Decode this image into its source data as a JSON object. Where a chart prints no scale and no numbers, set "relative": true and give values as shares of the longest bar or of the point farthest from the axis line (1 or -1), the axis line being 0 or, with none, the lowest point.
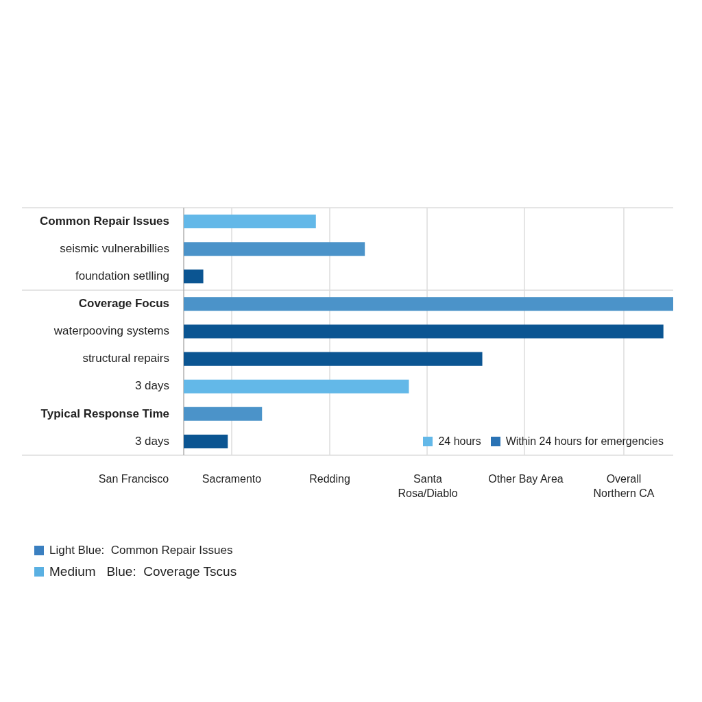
{
  "chart_data": {
    "type": "bar",
    "orientation": "horizontal",
    "relative": true,
    "grid": "x",
    "categories": [
      "Common Repair Issues",
      "seismic vulnerabillies",
      "foundation setlling",
      "Coverage Focus",
      "waterpooving systems",
      "structural repairs",
      "3 days",
      "Typical Response Time",
      "3 days"
    ],
    "values": [
      0.27,
      0.37,
      0.04,
      1,
      0.98,
      0.61,
      0.46,
      0.16,
      0.09
    ],
    "colors": [
      "#63b8e8",
      "#4b93c9",
      "#0b5592",
      "#4b93c9",
      "#0b5592",
      "#0b5592",
      "#63b8e8",
      "#4b93c9",
      "#0b5592"
    ],
    "annotations": [
      "San Francisco",
      "Sacramento",
      "Redding",
      "Santa Rosa/Diablo",
      "Other Bay Area",
      "Overall Northern CA",
      "24 hours",
      "Within 24 hours for emergencies",
      "Light Blue:  Common Repair Issues",
      "Medium   Blue:  Coverage Tscus"
    ]
  }
}
